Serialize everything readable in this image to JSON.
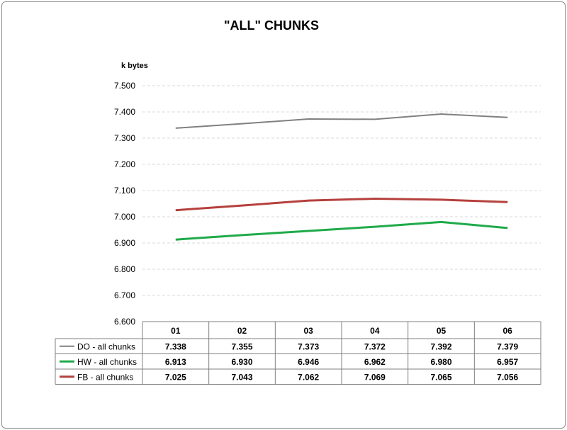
{
  "chart_data": {
    "type": "line",
    "title": "\"ALL\" CHUNKS",
    "ylabel": "k bytes",
    "xlabel": "",
    "categories": [
      "01",
      "02",
      "03",
      "04",
      "05",
      "06"
    ],
    "ylim": [
      6.6,
      7.5
    ],
    "y_ticks": [
      "6.600",
      "6.700",
      "6.800",
      "6.900",
      "7.000",
      "7.100",
      "7.200",
      "7.300",
      "7.400",
      "7.500"
    ],
    "grid": true,
    "legend": "data table below plot",
    "series": [
      {
        "name": "DO - all chunks",
        "color": "#808080",
        "values": [
          7.338,
          7.355,
          7.373,
          7.372,
          7.392,
          7.379
        ],
        "labels": [
          "7.338",
          "7.355",
          "7.373",
          "7.372",
          "7.392",
          "7.379"
        ]
      },
      {
        "name": "HW - all chunks",
        "color": "#1faa4a",
        "values": [
          6.913,
          6.93,
          6.946,
          6.962,
          6.98,
          6.957
        ],
        "labels": [
          "6.913",
          "6.930",
          "6.946",
          "6.962",
          "6.980",
          "6.957"
        ]
      },
      {
        "name": "FB - all chunks",
        "color": "#b5403d",
        "values": [
          7.025,
          7.043,
          7.062,
          7.069,
          7.065,
          7.056
        ],
        "labels": [
          "7.025",
          "7.043",
          "7.062",
          "7.069",
          "7.065",
          "7.056"
        ]
      }
    ]
  }
}
